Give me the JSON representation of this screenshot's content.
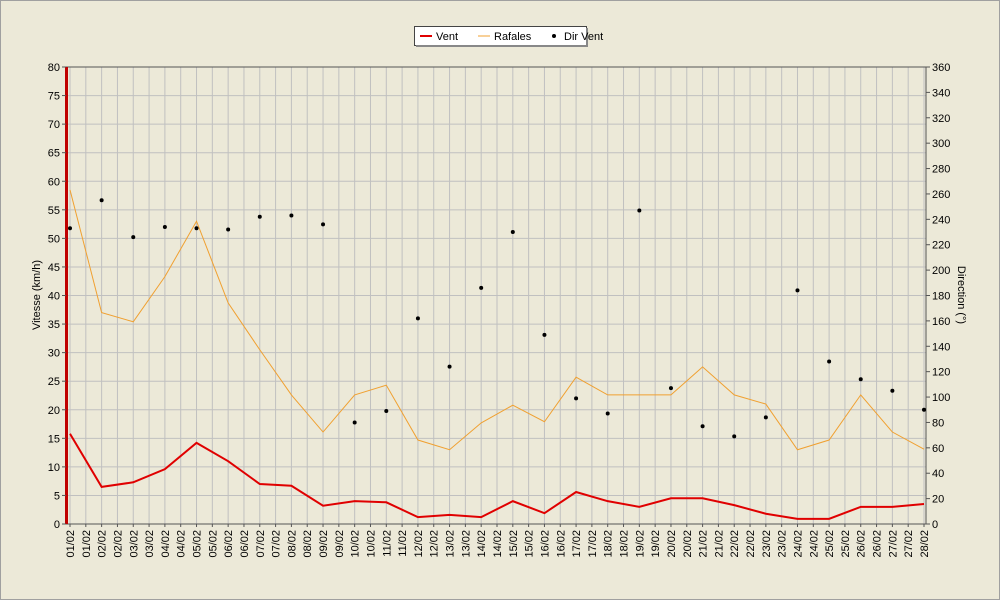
{
  "chart_data": {
    "type": "line",
    "categories": [
      "01/02",
      "01/02",
      "02/02",
      "02/02",
      "03/02",
      "03/02",
      "04/02",
      "04/02",
      "05/02",
      "05/02",
      "06/02",
      "06/02",
      "07/02",
      "07/02",
      "08/02",
      "08/02",
      "09/02",
      "09/02",
      "10/02",
      "10/02",
      "11/02",
      "11/02",
      "12/02",
      "12/02",
      "13/02",
      "13/02",
      "14/02",
      "14/02",
      "15/02",
      "15/02",
      "16/02",
      "16/02",
      "17/02",
      "17/02",
      "18/02",
      "18/02",
      "19/02",
      "19/02",
      "20/02",
      "20/02",
      "21/02",
      "21/02",
      "22/02",
      "22/02",
      "23/02",
      "23/02",
      "24/02",
      "24/02",
      "25/02",
      "25/02",
      "26/02",
      "26/02",
      "27/02",
      "27/02",
      "28/02"
    ],
    "connect_gaps": true,
    "series": [
      {
        "name": "Vent",
        "color": "#e00000",
        "values": [
          15.8,
          null,
          6.5,
          null,
          7.3,
          null,
          9.6,
          null,
          14.2,
          null,
          11.0,
          null,
          7.0,
          null,
          6.7,
          null,
          3.2,
          null,
          4.0,
          null,
          3.8,
          null,
          1.2,
          null,
          1.6,
          null,
          1.2,
          null,
          4.0,
          null,
          1.9,
          null,
          5.6,
          null,
          4.0,
          null,
          3.0,
          null,
          4.5,
          null,
          4.5,
          null,
          3.3,
          null,
          1.8,
          null,
          0.9,
          null,
          0.9,
          null,
          3.0,
          null,
          3.0,
          null,
          3.5
        ]
      },
      {
        "name": "Rafales",
        "color": "#f0a030",
        "values": [
          58.5,
          null,
          37.0,
          null,
          35.4,
          null,
          43.3,
          null,
          53.0,
          null,
          38.7,
          null,
          30.5,
          null,
          22.6,
          null,
          16.1,
          null,
          22.6,
          null,
          24.3,
          null,
          14.7,
          null,
          13.0,
          null,
          17.7,
          null,
          20.8,
          null,
          17.9,
          null,
          25.7,
          null,
          22.6,
          null,
          22.6,
          null,
          22.6,
          null,
          27.5,
          null,
          22.6,
          null,
          21.0,
          null,
          13.0,
          null,
          14.7,
          null,
          22.6,
          null,
          16.1,
          null,
          13.1
        ]
      },
      {
        "name": "Dir Vent",
        "color": "#000000",
        "type": "scatter",
        "axis": "y2",
        "values": [
          233,
          null,
          255,
          null,
          226,
          null,
          234,
          null,
          233,
          null,
          232,
          null,
          242,
          null,
          243,
          null,
          236,
          null,
          80,
          null,
          89,
          null,
          162,
          null,
          124,
          null,
          186,
          null,
          230,
          null,
          149,
          null,
          99,
          null,
          87,
          null,
          247,
          null,
          107,
          null,
          77,
          null,
          69,
          null,
          84,
          null,
          184,
          null,
          128,
          null,
          114,
          null,
          105,
          null,
          90
        ]
      }
    ],
    "ylabel": "Vitesse (km/h)",
    "y2label": "Direction (°)",
    "ylim": [
      0,
      80
    ],
    "yticks": [
      0,
      5,
      10,
      15,
      20,
      25,
      30,
      35,
      40,
      45,
      50,
      55,
      60,
      65,
      70,
      75,
      80
    ],
    "y2lim": [
      0,
      360
    ],
    "y2ticks": [
      0,
      20,
      40,
      60,
      80,
      100,
      120,
      140,
      160,
      180,
      200,
      220,
      240,
      260,
      280,
      300,
      320,
      340,
      360
    ],
    "grid": true,
    "legend": "top"
  }
}
